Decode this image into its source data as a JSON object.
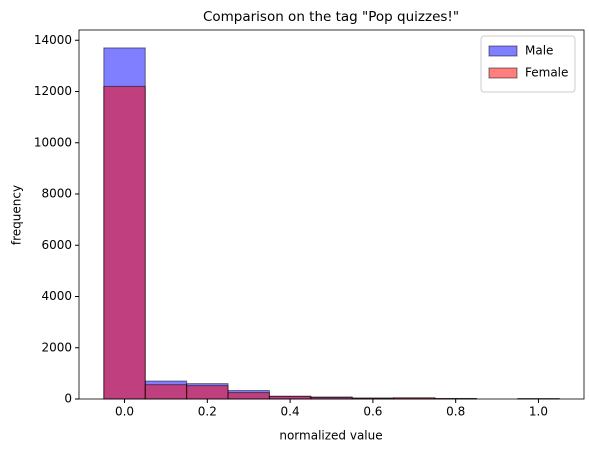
{
  "chart_data": {
    "type": "histogram",
    "title": "Comparison on the tag \"Pop quizzes!\"",
    "xlabel": "normalized value",
    "ylabel": "frequency",
    "bins": [
      -0.05,
      0.05,
      0.15,
      0.25,
      0.35,
      0.45,
      0.55,
      0.65,
      0.75,
      0.85,
      0.95,
      1.05
    ],
    "series": [
      {
        "name": "Male",
        "color": "#0000ff",
        "values": [
          13700,
          700,
          600,
          330,
          110,
          80,
          40,
          30,
          20,
          0,
          15
        ]
      },
      {
        "name": "Female",
        "color": "#ff0000",
        "values": [
          12200,
          560,
          520,
          250,
          100,
          60,
          30,
          50,
          20,
          0,
          10
        ]
      }
    ],
    "alpha": 0.5,
    "edgecolor": "#000000",
    "xlim": [
      -0.11,
      1.11
    ],
    "ylim": [
      0,
      14400
    ],
    "xticks": [
      {
        "value": 0,
        "label": "0.0"
      },
      0.2,
      0.4,
      0.6,
      0.8,
      {
        "value": 1,
        "label": "1.0"
      }
    ],
    "yticks": [
      0,
      2000,
      4000,
      6000,
      8000,
      10000,
      12000,
      14000
    ],
    "legend": "upper right"
  }
}
